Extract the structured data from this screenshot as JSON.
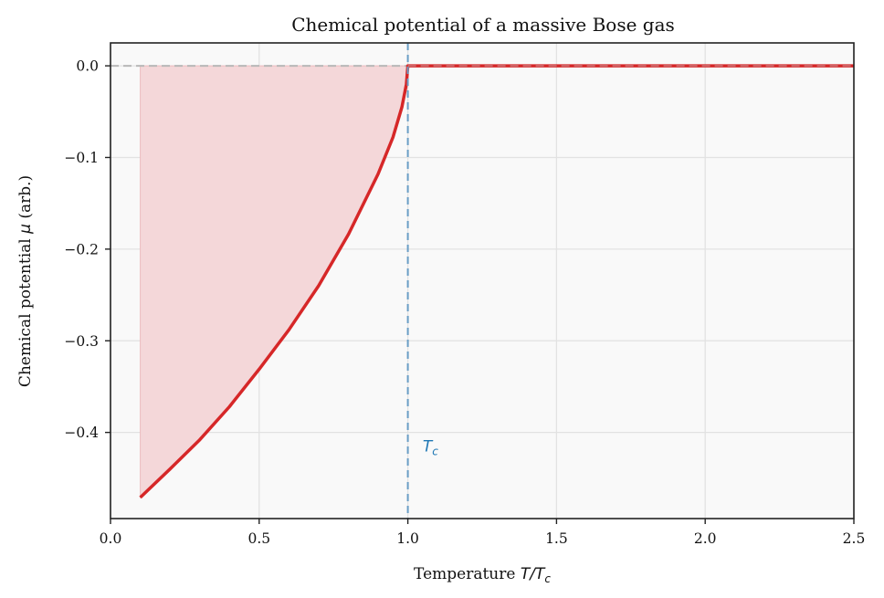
{
  "chart_data": {
    "type": "line",
    "title": "Chemical potential of a massive Bose gas",
    "xlabel": "Temperature T/T_c",
    "xlabel_text": "Temperature ",
    "xlabel_math": "T/T",
    "xlabel_sub": "c",
    "ylabel": "Chemical potential μ (arb.)",
    "ylabel_pre": "Chemical potential ",
    "ylabel_math": "μ",
    "ylabel_post": " (arb.)",
    "xlim": [
      0.0,
      2.5
    ],
    "ylim": [
      -0.494,
      0.025
    ],
    "xticks": [
      0.0,
      0.5,
      1.0,
      1.5,
      2.0,
      2.5
    ],
    "xtick_labels": [
      "0.0",
      "0.5",
      "1.0",
      "1.5",
      "2.0",
      "2.5"
    ],
    "yticks": [
      0.0,
      -0.1,
      -0.2,
      -0.3,
      -0.4
    ],
    "ytick_labels": [
      "0.0",
      "−0.1",
      "−0.2",
      "−0.3",
      "−0.4"
    ],
    "grid": true,
    "series": [
      {
        "name": "mu(T)",
        "color": "#d62728",
        "x": [
          0.1,
          0.2,
          0.3,
          0.4,
          0.5,
          0.6,
          0.7,
          0.8,
          0.9,
          0.95,
          0.98,
          0.995,
          1.0,
          1.5,
          2.0,
          2.5
        ],
        "y": [
          -0.471,
          -0.44,
          -0.408,
          -0.372,
          -0.331,
          -0.288,
          -0.24,
          -0.184,
          -0.118,
          -0.078,
          -0.045,
          -0.02,
          0.0,
          0.0,
          0.0,
          0.0
        ]
      }
    ],
    "fill_between": {
      "series": "mu(T)",
      "x_range": [
        0.1,
        1.0
      ],
      "to": 0.0,
      "color": "#f4d7d9"
    },
    "reference_lines": [
      {
        "type": "horizontal",
        "y": 0.0,
        "style": "dashed",
        "color": "#b8b8b8"
      },
      {
        "type": "vertical",
        "x": 1.0,
        "style": "dashed",
        "color": "#6a9ec6"
      }
    ],
    "annotations": [
      {
        "text": "T_c",
        "main": "T",
        "sub": "c",
        "x": 1.05,
        "y": -0.415,
        "color": "#1f77b4"
      }
    ],
    "legend": null
  }
}
